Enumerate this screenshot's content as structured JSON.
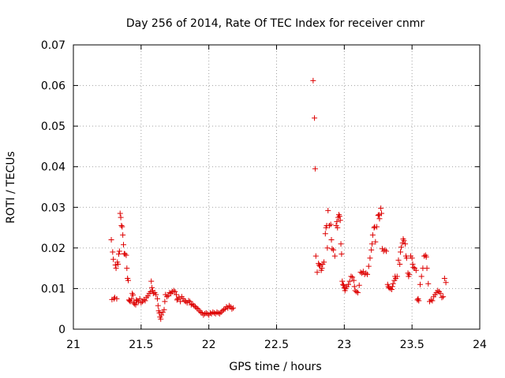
{
  "chart_data": {
    "type": "scatter",
    "title": "Day 256 of 2014, Rate Of TEC Index for receiver cnmr",
    "xlabel": "GPS time / hours",
    "ylabel": "ROTI / TECUs",
    "xlim": [
      21,
      24
    ],
    "ylim": [
      0,
      0.07
    ],
    "xticks": [
      21,
      21.5,
      22,
      22.5,
      23,
      23.5,
      24
    ],
    "xtick_labels": [
      "21",
      "21.5",
      "22",
      "22.5",
      "23",
      "23.5",
      "24"
    ],
    "yticks": [
      0,
      0.01,
      0.02,
      0.03,
      0.04,
      0.05,
      0.06,
      0.07
    ],
    "ytick_labels": [
      "0",
      "0.01",
      "0.02",
      "0.03",
      "0.04",
      "0.05",
      "0.06",
      "0.07"
    ],
    "grid": true,
    "marker": "+",
    "colors": {
      "points": "#dd0000",
      "grid": "#a0a0a0",
      "axis": "#000000"
    },
    "series": [
      {
        "name": "ROTI",
        "points": [
          [
            21.28,
            0.022
          ],
          [
            21.285,
            0.0073
          ],
          [
            21.29,
            0.019
          ],
          [
            21.295,
            0.0172
          ],
          [
            21.3,
            0.0075
          ],
          [
            21.305,
            0.0078
          ],
          [
            21.31,
            0.0158
          ],
          [
            21.315,
            0.015
          ],
          [
            21.32,
            0.0075
          ],
          [
            21.325,
            0.0165
          ],
          [
            21.33,
            0.016
          ],
          [
            21.335,
            0.0185
          ],
          [
            21.34,
            0.0192
          ],
          [
            21.345,
            0.0285
          ],
          [
            21.35,
            0.0275
          ],
          [
            21.355,
            0.0255
          ],
          [
            21.36,
            0.0252
          ],
          [
            21.365,
            0.0232
          ],
          [
            21.37,
            0.0208
          ],
          [
            21.375,
            0.0186
          ],
          [
            21.38,
            0.0185
          ],
          [
            21.39,
            0.0182
          ],
          [
            21.395,
            0.015
          ],
          [
            21.4,
            0.0125
          ],
          [
            21.405,
            0.012
          ],
          [
            21.41,
            0.0072
          ],
          [
            21.415,
            0.007
          ],
          [
            21.42,
            0.0068
          ],
          [
            21.43,
            0.0075
          ],
          [
            21.435,
            0.0088
          ],
          [
            21.44,
            0.0084
          ],
          [
            21.445,
            0.0065
          ],
          [
            21.45,
            0.0062
          ],
          [
            21.46,
            0.006
          ],
          [
            21.465,
            0.0072
          ],
          [
            21.47,
            0.007
          ],
          [
            21.48,
            0.0068
          ],
          [
            21.49,
            0.0075
          ],
          [
            21.5,
            0.0065
          ],
          [
            21.51,
            0.0068
          ],
          [
            21.52,
            0.0073
          ],
          [
            21.53,
            0.007
          ],
          [
            21.54,
            0.0078
          ],
          [
            21.55,
            0.0082
          ],
          [
            21.56,
            0.0088
          ],
          [
            21.57,
            0.0092
          ],
          [
            21.575,
            0.0118
          ],
          [
            21.58,
            0.0102
          ],
          [
            21.585,
            0.0095
          ],
          [
            21.59,
            0.0088
          ],
          [
            21.6,
            0.009
          ],
          [
            21.61,
            0.0085
          ],
          [
            21.62,
            0.0075
          ],
          [
            21.625,
            0.0058
          ],
          [
            21.63,
            0.0045
          ],
          [
            21.635,
            0.004
          ],
          [
            21.64,
            0.003
          ],
          [
            21.645,
            0.0025
          ],
          [
            21.65,
            0.0035
          ],
          [
            21.66,
            0.0042
          ],
          [
            21.67,
            0.0048
          ],
          [
            21.675,
            0.0068
          ],
          [
            21.68,
            0.0085
          ],
          [
            21.69,
            0.008
          ],
          [
            21.7,
            0.0082
          ],
          [
            21.71,
            0.009
          ],
          [
            21.72,
            0.0088
          ],
          [
            21.73,
            0.0092
          ],
          [
            21.74,
            0.0095
          ],
          [
            21.75,
            0.0092
          ],
          [
            21.76,
            0.0085
          ],
          [
            21.765,
            0.0072
          ],
          [
            21.77,
            0.0075
          ],
          [
            21.78,
            0.0078
          ],
          [
            21.79,
            0.0068
          ],
          [
            21.8,
            0.008
          ],
          [
            21.81,
            0.0075
          ],
          [
            21.82,
            0.007
          ],
          [
            21.83,
            0.0068
          ],
          [
            21.84,
            0.0065
          ],
          [
            21.85,
            0.007
          ],
          [
            21.86,
            0.0068
          ],
          [
            21.87,
            0.006
          ],
          [
            21.88,
            0.0062
          ],
          [
            21.89,
            0.0058
          ],
          [
            21.9,
            0.0055
          ],
          [
            21.91,
            0.0052
          ],
          [
            21.92,
            0.005
          ],
          [
            21.93,
            0.0045
          ],
          [
            21.94,
            0.0042
          ],
          [
            21.95,
            0.004
          ],
          [
            21.96,
            0.0035
          ],
          [
            21.97,
            0.0038
          ],
          [
            21.98,
            0.004
          ],
          [
            21.99,
            0.0038
          ],
          [
            22.0,
            0.0035
          ],
          [
            22.01,
            0.004
          ],
          [
            22.02,
            0.0038
          ],
          [
            22.03,
            0.0042
          ],
          [
            22.04,
            0.004
          ],
          [
            22.05,
            0.0038
          ],
          [
            22.06,
            0.0042
          ],
          [
            22.07,
            0.004
          ],
          [
            22.08,
            0.0038
          ],
          [
            22.09,
            0.0042
          ],
          [
            22.1,
            0.0045
          ],
          [
            22.11,
            0.0048
          ],
          [
            22.12,
            0.005
          ],
          [
            22.13,
            0.0055
          ],
          [
            22.14,
            0.0052
          ],
          [
            22.15,
            0.0058
          ],
          [
            22.16,
            0.0055
          ],
          [
            22.17,
            0.005
          ],
          [
            22.18,
            0.0052
          ],
          [
            22.77,
            0.0612
          ],
          [
            22.78,
            0.052
          ],
          [
            22.785,
            0.0395
          ],
          [
            22.79,
            0.018
          ],
          [
            22.8,
            0.014
          ],
          [
            22.81,
            0.0162
          ],
          [
            22.815,
            0.0158
          ],
          [
            22.82,
            0.0155
          ],
          [
            22.83,
            0.0145
          ],
          [
            22.835,
            0.015
          ],
          [
            22.84,
            0.016
          ],
          [
            22.85,
            0.0165
          ],
          [
            22.86,
            0.0235
          ],
          [
            22.865,
            0.025
          ],
          [
            22.87,
            0.0255
          ],
          [
            22.875,
            0.02
          ],
          [
            22.88,
            0.0292
          ],
          [
            22.89,
            0.0255
          ],
          [
            22.9,
            0.0258
          ],
          [
            22.905,
            0.022
          ],
          [
            22.91,
            0.0198
          ],
          [
            22.92,
            0.0195
          ],
          [
            22.93,
            0.018
          ],
          [
            22.94,
            0.0255
          ],
          [
            22.945,
            0.0265
          ],
          [
            22.95,
            0.025
          ],
          [
            22.955,
            0.0275
          ],
          [
            22.96,
            0.0282
          ],
          [
            22.965,
            0.0278
          ],
          [
            22.97,
            0.0268
          ],
          [
            22.975,
            0.021
          ],
          [
            22.98,
            0.0185
          ],
          [
            22.985,
            0.0118
          ],
          [
            22.99,
            0.011
          ],
          [
            22.995,
            0.0108
          ],
          [
            23.0,
            0.0102
          ],
          [
            23.005,
            0.0095
          ],
          [
            23.01,
            0.01
          ],
          [
            23.02,
            0.0105
          ],
          [
            23.03,
            0.011
          ],
          [
            23.04,
            0.0118
          ],
          [
            23.05,
            0.013
          ],
          [
            23.06,
            0.0128
          ],
          [
            23.07,
            0.012
          ],
          [
            23.075,
            0.0105
          ],
          [
            23.08,
            0.0095
          ],
          [
            23.09,
            0.0092
          ],
          [
            23.1,
            0.009
          ],
          [
            23.11,
            0.0108
          ],
          [
            23.12,
            0.014
          ],
          [
            23.13,
            0.0138
          ],
          [
            23.14,
            0.0142
          ],
          [
            23.15,
            0.0135
          ],
          [
            23.16,
            0.0138
          ],
          [
            23.17,
            0.0135
          ],
          [
            23.18,
            0.0155
          ],
          [
            23.19,
            0.0175
          ],
          [
            23.2,
            0.0195
          ],
          [
            23.205,
            0.021
          ],
          [
            23.21,
            0.0232
          ],
          [
            23.22,
            0.025
          ],
          [
            23.225,
            0.0252
          ],
          [
            23.23,
            0.0215
          ],
          [
            23.24,
            0.0252
          ],
          [
            23.25,
            0.028
          ],
          [
            23.255,
            0.0282
          ],
          [
            23.26,
            0.0272
          ],
          [
            23.27,
            0.0298
          ],
          [
            23.275,
            0.0285
          ],
          [
            23.28,
            0.0198
          ],
          [
            23.29,
            0.0192
          ],
          [
            23.3,
            0.0195
          ],
          [
            23.31,
            0.0192
          ],
          [
            23.32,
            0.011
          ],
          [
            23.325,
            0.0105
          ],
          [
            23.33,
            0.0102
          ],
          [
            23.34,
            0.01
          ],
          [
            23.35,
            0.0098
          ],
          [
            23.355,
            0.0105
          ],
          [
            23.36,
            0.0112
          ],
          [
            23.37,
            0.012
          ],
          [
            23.375,
            0.013
          ],
          [
            23.38,
            0.0125
          ],
          [
            23.39,
            0.013
          ],
          [
            23.4,
            0.017
          ],
          [
            23.41,
            0.016
          ],
          [
            23.415,
            0.019
          ],
          [
            23.42,
            0.0202
          ],
          [
            23.43,
            0.0212
          ],
          [
            23.435,
            0.0222
          ],
          [
            23.44,
            0.0218
          ],
          [
            23.45,
            0.021
          ],
          [
            23.455,
            0.018
          ],
          [
            23.46,
            0.0175
          ],
          [
            23.47,
            0.0138
          ],
          [
            23.475,
            0.013
          ],
          [
            23.48,
            0.0135
          ],
          [
            23.49,
            0.018
          ],
          [
            23.5,
            0.0175
          ],
          [
            23.505,
            0.016
          ],
          [
            23.51,
            0.0152
          ],
          [
            23.52,
            0.015
          ],
          [
            23.53,
            0.0145
          ],
          [
            23.54,
            0.0072
          ],
          [
            23.545,
            0.0075
          ],
          [
            23.55,
            0.007
          ],
          [
            23.56,
            0.011
          ],
          [
            23.57,
            0.013
          ],
          [
            23.58,
            0.015
          ],
          [
            23.59,
            0.018
          ],
          [
            23.6,
            0.0182
          ],
          [
            23.605,
            0.0178
          ],
          [
            23.61,
            0.015
          ],
          [
            23.62,
            0.0112
          ],
          [
            23.63,
            0.0068
          ],
          [
            23.64,
            0.0072
          ],
          [
            23.65,
            0.007
          ],
          [
            23.66,
            0.008
          ],
          [
            23.67,
            0.0085
          ],
          [
            23.68,
            0.009
          ],
          [
            23.69,
            0.0095
          ],
          [
            23.7,
            0.0092
          ],
          [
            23.71,
            0.0088
          ],
          [
            23.72,
            0.0078
          ],
          [
            23.73,
            0.008
          ],
          [
            23.74,
            0.0125
          ],
          [
            23.75,
            0.0115
          ]
        ]
      }
    ]
  }
}
